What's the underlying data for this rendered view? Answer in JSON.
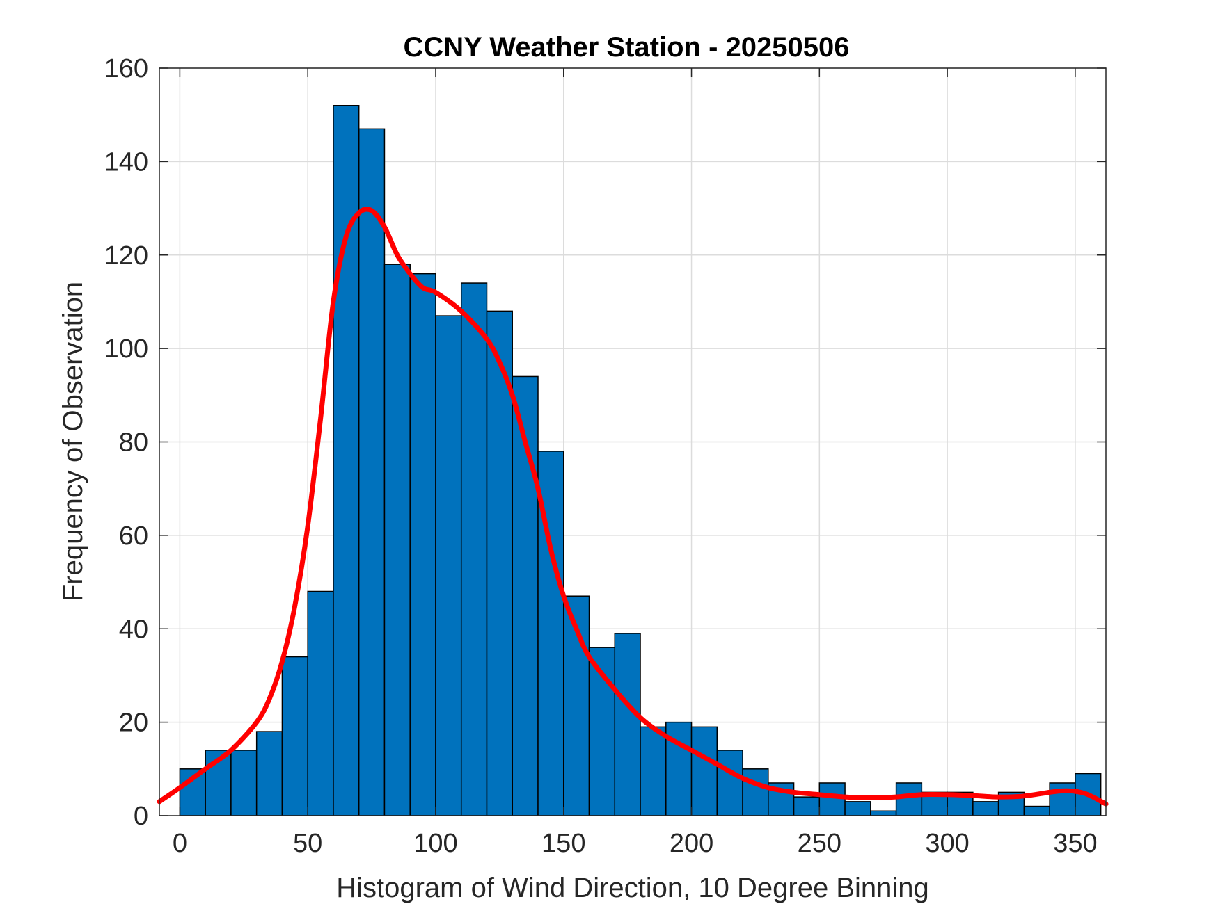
{
  "chart_data": {
    "type": "bar",
    "title": "CCNY Weather Station - 20250506",
    "xlabel": "Histogram of Wind Direction, 10 Degree Binning",
    "ylabel": "Frequency of Observation",
    "xlim": [
      -8,
      362
    ],
    "ylim": [
      0,
      160
    ],
    "xticks": [
      0,
      50,
      100,
      150,
      200,
      250,
      300,
      350
    ],
    "yticks": [
      0,
      20,
      40,
      60,
      80,
      100,
      120,
      140,
      160
    ],
    "grid": true,
    "bin_width": 10,
    "bins": [
      {
        "x0": 0,
        "value": 10
      },
      {
        "x0": 10,
        "value": 14
      },
      {
        "x0": 20,
        "value": 14
      },
      {
        "x0": 30,
        "value": 18
      },
      {
        "x0": 40,
        "value": 34
      },
      {
        "x0": 50,
        "value": 48
      },
      {
        "x0": 60,
        "value": 152
      },
      {
        "x0": 70,
        "value": 147
      },
      {
        "x0": 80,
        "value": 118
      },
      {
        "x0": 90,
        "value": 116
      },
      {
        "x0": 100,
        "value": 107
      },
      {
        "x0": 110,
        "value": 114
      },
      {
        "x0": 120,
        "value": 108
      },
      {
        "x0": 130,
        "value": 94
      },
      {
        "x0": 140,
        "value": 78
      },
      {
        "x0": 150,
        "value": 47
      },
      {
        "x0": 160,
        "value": 36
      },
      {
        "x0": 170,
        "value": 39
      },
      {
        "x0": 180,
        "value": 19
      },
      {
        "x0": 190,
        "value": 20
      },
      {
        "x0": 200,
        "value": 19
      },
      {
        "x0": 210,
        "value": 14
      },
      {
        "x0": 220,
        "value": 10
      },
      {
        "x0": 230,
        "value": 7
      },
      {
        "x0": 240,
        "value": 4
      },
      {
        "x0": 250,
        "value": 7
      },
      {
        "x0": 260,
        "value": 3
      },
      {
        "x0": 270,
        "value": 1
      },
      {
        "x0": 280,
        "value": 7
      },
      {
        "x0": 290,
        "value": 5
      },
      {
        "x0": 300,
        "value": 5
      },
      {
        "x0": 310,
        "value": 3
      },
      {
        "x0": 320,
        "value": 5
      },
      {
        "x0": 330,
        "value": 2
      },
      {
        "x0": 340,
        "value": 7
      },
      {
        "x0": 350,
        "value": 9
      }
    ],
    "density_curve": {
      "x": [
        -8,
        0,
        10,
        20,
        30,
        35,
        40,
        45,
        50,
        55,
        60,
        65,
        70,
        75,
        80,
        85,
        90,
        95,
        100,
        110,
        120,
        125,
        130,
        135,
        140,
        145,
        150,
        155,
        160,
        170,
        180,
        190,
        200,
        210,
        220,
        230,
        240,
        250,
        260,
        270,
        280,
        290,
        300,
        310,
        320,
        330,
        340,
        345,
        350,
        355,
        362
      ],
      "y": [
        3,
        6,
        10,
        14,
        20,
        25,
        33,
        45,
        62,
        85,
        110,
        124,
        129,
        129.5,
        126,
        120,
        116,
        113,
        112,
        108,
        102,
        97,
        90,
        80,
        70,
        57,
        47,
        40,
        34,
        27,
        21,
        17,
        14,
        11,
        8,
        6,
        5,
        4.5,
        4,
        3.8,
        4,
        4.5,
        4.5,
        4.3,
        4,
        4.2,
        5,
        5.3,
        5.2,
        4.5,
        2.5
      ],
      "color": "#ff0000"
    },
    "colors": {
      "bar_fill": "#0072bd",
      "bar_edge": "#000000",
      "grid": "#dcdcdc",
      "axes": "#262626"
    }
  }
}
